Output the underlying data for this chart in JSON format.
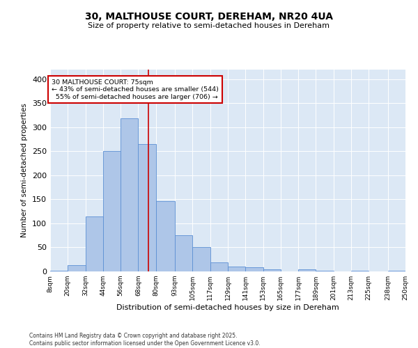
{
  "title_line1": "30, MALTHOUSE COURT, DEREHAM, NR20 4UA",
  "title_line2": "Size of property relative to semi-detached houses in Dereham",
  "xlabel": "Distribution of semi-detached houses by size in Dereham",
  "ylabel": "Number of semi-detached properties",
  "property_size": 75,
  "property_label": "30 MALTHOUSE COURT: 75sqm",
  "pct_smaller": 43,
  "pct_larger": 55,
  "count_smaller": 544,
  "count_larger": 706,
  "bin_labels": [
    "8sqm",
    "20sqm",
    "32sqm",
    "44sqm",
    "56sqm",
    "68sqm",
    "80sqm",
    "93sqm",
    "105sqm",
    "117sqm",
    "129sqm",
    "141sqm",
    "153sqm",
    "165sqm",
    "177sqm",
    "189sqm",
    "201sqm",
    "213sqm",
    "225sqm",
    "238sqm",
    "250sqm"
  ],
  "bin_edges": [
    8,
    20,
    32,
    44,
    56,
    68,
    80,
    93,
    105,
    117,
    129,
    141,
    153,
    165,
    177,
    189,
    201,
    213,
    225,
    238,
    250
  ],
  "bar_heights": [
    2,
    13,
    115,
    250,
    318,
    265,
    147,
    75,
    50,
    19,
    10,
    8,
    5,
    0,
    4,
    1,
    0,
    1,
    0,
    2
  ],
  "bar_color": "#aec6e8",
  "bar_edge_color": "#5b8fd4",
  "vline_color": "#cc0000",
  "vline_x": 75,
  "annotation_box_color": "#cc0000",
  "background_color": "#dce8f5",
  "ylim": [
    0,
    420
  ],
  "yticks": [
    0,
    50,
    100,
    150,
    200,
    250,
    300,
    350,
    400
  ],
  "footer_line1": "Contains HM Land Registry data © Crown copyright and database right 2025.",
  "footer_line2": "Contains public sector information licensed under the Open Government Licence v3.0."
}
